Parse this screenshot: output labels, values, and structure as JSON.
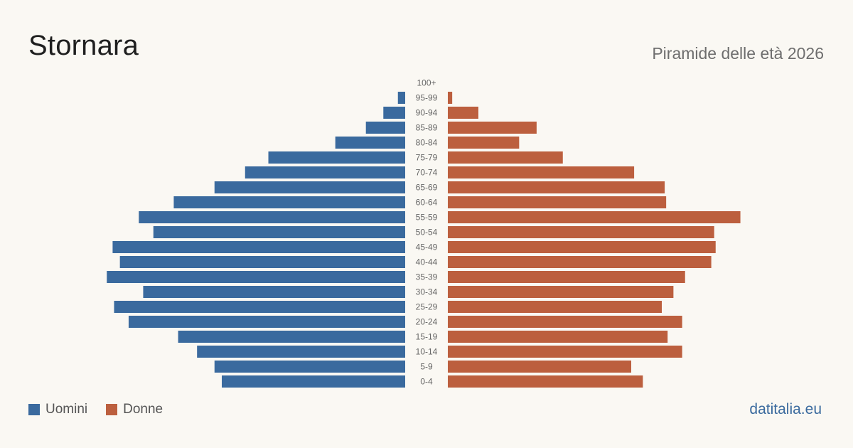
{
  "header": {
    "title": "Stornara",
    "subtitle": "Piramide delle età 2026"
  },
  "legend": {
    "men_label": "Uomini",
    "women_label": "Donne"
  },
  "brand": "datitalia.eu",
  "colors": {
    "men": "#3a6a9e",
    "women": "#bc5f3e",
    "background": "#faf8f3",
    "tick_label": "#666666"
  },
  "chart_data": {
    "type": "bar",
    "orientation": "horizontal-pyramid",
    "categories": [
      "100+",
      "95-99",
      "90-94",
      "85-89",
      "80-84",
      "75-79",
      "70-74",
      "65-69",
      "60-64",
      "55-59",
      "50-54",
      "45-49",
      "40-44",
      "35-39",
      "30-34",
      "25-29",
      "20-24",
      "15-19",
      "10-14",
      "5-9",
      "0-4"
    ],
    "series": [
      {
        "name": "Uomini",
        "values": [
          0,
          5,
          15,
          27,
          48,
          94,
          110,
          131,
          159,
          183,
          173,
          201,
          196,
          205,
          180,
          200,
          190,
          156,
          143,
          131,
          126
        ]
      },
      {
        "name": "Donne",
        "values": [
          0,
          3,
          21,
          61,
          49,
          79,
          128,
          149,
          150,
          201,
          183,
          184,
          181,
          163,
          155,
          147,
          161,
          151,
          161,
          126,
          134
        ]
      }
    ],
    "xlim": [
      0,
      210
    ],
    "grid": false,
    "legend_position": "bottom-left"
  }
}
